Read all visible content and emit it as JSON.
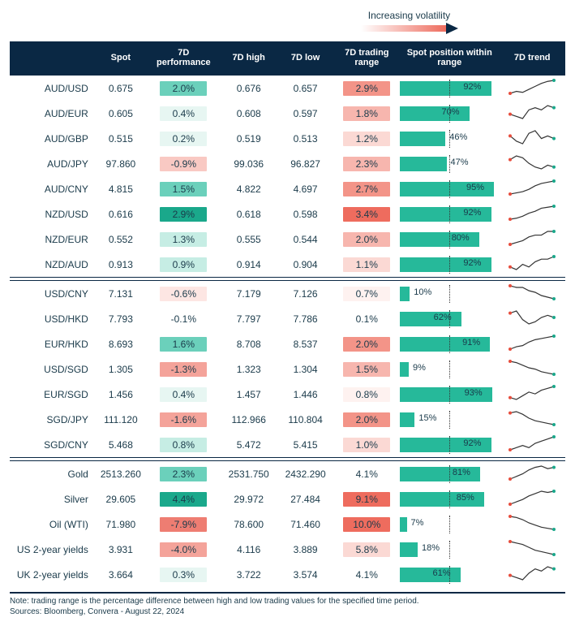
{
  "header": {
    "volatility_label": "Increasing volatility",
    "columns": [
      "",
      "Spot",
      "7D performance",
      "7D high",
      "7D low",
      "7D trading range",
      "Spot position within range",
      "7D trend"
    ]
  },
  "colors": {
    "header_bg": "#0a2844",
    "header_text": "#ffffff",
    "bar_fill": "#26b99a",
    "text": "#1a3a4a",
    "perf_scale": {
      "strong_pos": "#1aa88b",
      "mid_pos": "#6bd0bb",
      "light_pos": "#c6ede4",
      "vlight_pos": "#e7f6f2",
      "neutral": "#ffffff",
      "vlight_neg": "#fde6e3",
      "light_neg": "#f9c9c3",
      "mid_neg": "#f4a39a",
      "strong_neg": "#ee7d72"
    },
    "range_scale": {
      "vlight": "#fef2f0",
      "light": "#fbd9d4",
      "mid": "#f7b6ae",
      "strong": "#f39488",
      "vstrong": "#ee6c5e"
    },
    "spark_line": "#333333",
    "spark_start": "#e74c3c",
    "spark_end": "#1aa88b"
  },
  "groups": [
    {
      "rows": [
        {
          "name": "AUD/USD",
          "spot": "0.675",
          "perf": "2.0%",
          "perf_c": "mid_pos",
          "high": "0.676",
          "low": "0.657",
          "range": "2.9%",
          "range_c": "strong",
          "pos": 92,
          "spark": [
            5,
            7,
            6,
            9,
            12,
            15,
            17,
            18
          ]
        },
        {
          "name": "AUD/EUR",
          "spot": "0.605",
          "perf": "0.4%",
          "perf_c": "vlight_pos",
          "high": "0.608",
          "low": "0.597",
          "range": "1.8%",
          "range_c": "mid",
          "pos": 70,
          "spark": [
            10,
            9,
            8,
            12,
            13,
            12,
            14,
            13
          ]
        },
        {
          "name": "AUD/GBP",
          "spot": "0.515",
          "perf": "0.2%",
          "perf_c": "vlight_pos",
          "high": "0.519",
          "low": "0.513",
          "range": "1.2%",
          "range_c": "light",
          "pos": 46,
          "spark": [
            12,
            10,
            9,
            13,
            14,
            11,
            12,
            11
          ]
        },
        {
          "name": "AUD/JPY",
          "spot": "97.860",
          "perf": "-0.9%",
          "perf_c": "light_neg",
          "high": "99.036",
          "low": "96.827",
          "range": "2.3%",
          "range_c": "mid",
          "pos": 47,
          "spark": [
            14,
            16,
            15,
            12,
            10,
            9,
            11,
            10
          ]
        },
        {
          "name": "AUD/CNY",
          "spot": "4.815",
          "perf": "1.5%",
          "perf_c": "mid_pos",
          "high": "4.822",
          "low": "4.697",
          "range": "2.7%",
          "range_c": "strong",
          "pos": 95,
          "spark": [
            6,
            7,
            8,
            10,
            13,
            15,
            16,
            17
          ]
        },
        {
          "name": "NZD/USD",
          "spot": "0.616",
          "perf": "2.9%",
          "perf_c": "strong_pos",
          "high": "0.618",
          "low": "0.598",
          "range": "3.4%",
          "range_c": "vstrong",
          "pos": 92,
          "spark": [
            5,
            6,
            8,
            11,
            13,
            16,
            17,
            18
          ]
        },
        {
          "name": "NZD/EUR",
          "spot": "0.552",
          "perf": "1.3%",
          "perf_c": "light_pos",
          "high": "0.555",
          "low": "0.544",
          "range": "2.0%",
          "range_c": "mid",
          "pos": 80,
          "spark": [
            8,
            9,
            10,
            12,
            13,
            13,
            15,
            15
          ]
        },
        {
          "name": "NZD/AUD",
          "spot": "0.913",
          "perf": "0.9%",
          "perf_c": "light_pos",
          "high": "0.914",
          "low": "0.904",
          "range": "1.1%",
          "range_c": "light",
          "pos": 92,
          "spark": [
            11,
            10,
            12,
            11,
            13,
            14,
            14,
            15
          ]
        }
      ]
    },
    {
      "rows": [
        {
          "name": "USD/CNY",
          "spot": "7.131",
          "perf": "-0.6%",
          "perf_c": "vlight_neg",
          "high": "7.179",
          "low": "7.126",
          "range": "0.7%",
          "range_c": "vlight",
          "pos": 10,
          "spark": [
            15,
            14,
            14,
            12,
            11,
            9,
            8,
            7
          ]
        },
        {
          "name": "USD/HKD",
          "spot": "7.793",
          "perf": "-0.1%",
          "perf_c": "neutral",
          "high": "7.797",
          "low": "7.786",
          "range": "0.1%",
          "range_c": "neutral",
          "pos": 62,
          "spark": [
            13,
            14,
            10,
            8,
            9,
            11,
            12,
            11
          ]
        },
        {
          "name": "EUR/HKD",
          "spot": "8.693",
          "perf": "1.6%",
          "perf_c": "mid_pos",
          "high": "8.708",
          "low": "8.537",
          "range": "2.0%",
          "range_c": "strong",
          "pos": 91,
          "spark": [
            6,
            8,
            9,
            12,
            14,
            15,
            16,
            17
          ]
        },
        {
          "name": "USD/SGD",
          "spot": "1.305",
          "perf": "-1.3%",
          "perf_c": "mid_neg",
          "high": "1.323",
          "low": "1.304",
          "range": "1.5%",
          "range_c": "mid",
          "pos": 9,
          "spark": [
            16,
            15,
            13,
            11,
            10,
            8,
            7,
            6
          ]
        },
        {
          "name": "EUR/SGD",
          "spot": "1.456",
          "perf": "0.4%",
          "perf_c": "vlight_pos",
          "high": "1.457",
          "low": "1.446",
          "range": "0.8%",
          "range_c": "vlight",
          "pos": 93,
          "spark": [
            9,
            8,
            10,
            12,
            11,
            13,
            14,
            15
          ]
        },
        {
          "name": "SGD/JPY",
          "spot": "111.120",
          "perf": "-1.6%",
          "perf_c": "mid_neg",
          "high": "112.966",
          "low": "110.804",
          "range": "2.0%",
          "range_c": "strong",
          "pos": 15,
          "spark": [
            16,
            17,
            15,
            12,
            10,
            9,
            8,
            7
          ]
        },
        {
          "name": "SGD/CNY",
          "spot": "5.468",
          "perf": "0.8%",
          "perf_c": "light_pos",
          "high": "5.472",
          "low": "5.415",
          "range": "1.0%",
          "range_c": "light",
          "pos": 92,
          "spark": [
            9,
            10,
            11,
            10,
            12,
            13,
            14,
            15
          ]
        }
      ]
    },
    {
      "rows": [
        {
          "name": "Gold",
          "spot": "2513.260",
          "perf": "2.3%",
          "perf_c": "mid_pos",
          "high": "2531.750",
          "low": "2432.290",
          "range": "4.1%",
          "range_c": "neutral",
          "pos": 81,
          "spark": [
            6,
            8,
            10,
            13,
            15,
            16,
            14,
            15
          ]
        },
        {
          "name": "Silver",
          "spot": "29.605",
          "perf": "4.4%",
          "perf_c": "strong_pos",
          "high": "29.972",
          "low": "27.484",
          "range": "9.1%",
          "range_c": "vstrong",
          "pos": 85,
          "spark": [
            5,
            7,
            9,
            12,
            14,
            16,
            15,
            16
          ]
        },
        {
          "name": "Oil (WTI)",
          "spot": "71.980",
          "perf": "-7.9%",
          "perf_c": "strong_neg",
          "high": "78.600",
          "low": "71.460",
          "range": "10.0%",
          "range_c": "vstrong",
          "pos": 7,
          "spark": [
            17,
            16,
            14,
            11,
            9,
            7,
            6,
            5
          ]
        },
        {
          "name": "US 2-year yields",
          "spot": "3.931",
          "perf": "-4.0%",
          "perf_c": "mid_neg",
          "high": "4.116",
          "low": "3.889",
          "range": "5.8%",
          "range_c": "light",
          "pos": 18,
          "spark": [
            16,
            15,
            14,
            12,
            10,
            9,
            8,
            7
          ]
        },
        {
          "name": "UK 2-year yields",
          "spot": "3.664",
          "perf": "0.3%",
          "perf_c": "vlight_pos",
          "high": "3.722",
          "low": "3.574",
          "range": "4.1%",
          "range_c": "neutral",
          "pos": 61,
          "spark": [
            10,
            9,
            8,
            11,
            13,
            12,
            14,
            13
          ]
        }
      ]
    }
  ],
  "footer": {
    "note": "Note: trading range is the percentage difference between high and low trading values for the specified time period.",
    "sources": "Sources: Bloomberg, Convera - August 22, 2024"
  }
}
